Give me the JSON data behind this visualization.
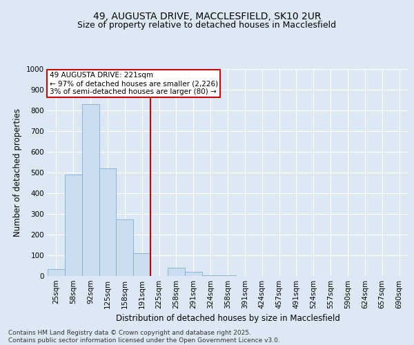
{
  "title_line1": "49, AUGUSTA DRIVE, MACCLESFIELD, SK10 2UR",
  "title_line2": "Size of property relative to detached houses in Macclesfield",
  "xlabel": "Distribution of detached houses by size in Macclesfield",
  "ylabel": "Number of detached properties",
  "categories": [
    "25sqm",
    "58sqm",
    "92sqm",
    "125sqm",
    "158sqm",
    "191sqm",
    "225sqm",
    "258sqm",
    "291sqm",
    "324sqm",
    "358sqm",
    "391sqm",
    "424sqm",
    "457sqm",
    "491sqm",
    "524sqm",
    "557sqm",
    "590sqm",
    "624sqm",
    "657sqm",
    "690sqm"
  ],
  "values": [
    35,
    490,
    830,
    520,
    275,
    110,
    0,
    40,
    20,
    5,
    3,
    0,
    0,
    0,
    0,
    0,
    0,
    0,
    0,
    0,
    0
  ],
  "bar_color": "#ccddf0",
  "bar_edge_color": "#7bafd4",
  "property_line_bin": 6,
  "property_line_color": "#cc0000",
  "annotation_text": "49 AUGUSTA DRIVE: 221sqm\n← 97% of detached houses are smaller (2,226)\n3% of semi-detached houses are larger (80) →",
  "annotation_box_facecolor": "#ffffff",
  "annotation_box_edgecolor": "#cc0000",
  "ylim": [
    0,
    1000
  ],
  "yticks": [
    0,
    100,
    200,
    300,
    400,
    500,
    600,
    700,
    800,
    900,
    1000
  ],
  "background_color": "#dde8f5",
  "plot_background": "#dde8f5",
  "grid_color": "#ffffff",
  "footer_line1": "Contains HM Land Registry data © Crown copyright and database right 2025.",
  "footer_line2": "Contains public sector information licensed under the Open Government Licence v3.0.",
  "title_fontsize": 10,
  "subtitle_fontsize": 9,
  "axis_label_fontsize": 8.5,
  "tick_fontsize": 7.5,
  "annotation_fontsize": 7.5,
  "footer_fontsize": 6.5
}
